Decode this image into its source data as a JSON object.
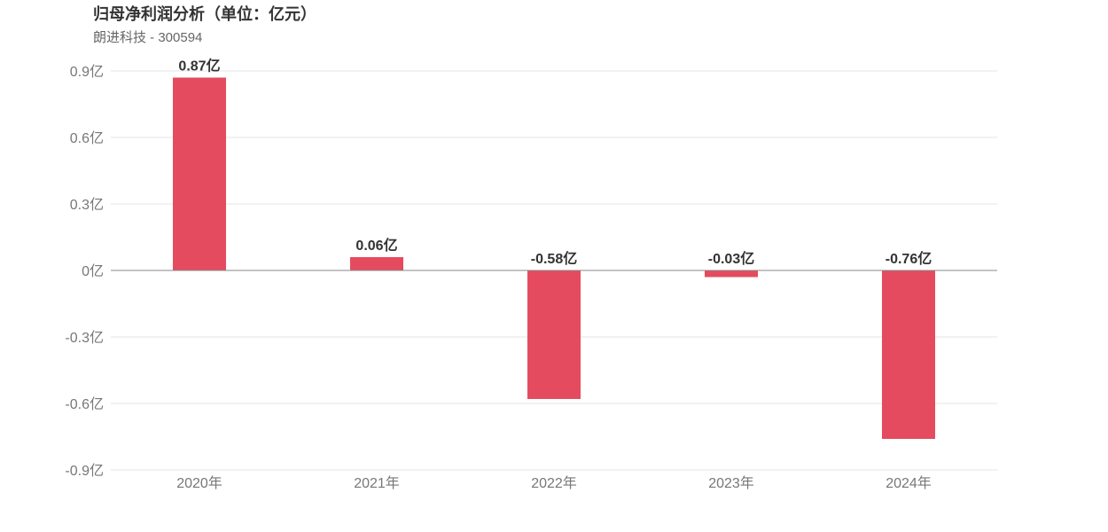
{
  "header": {
    "title": "归母净利润分析（单位：亿元）",
    "subtitle": "朗进科技 - 300594"
  },
  "colors": {
    "bar": "#e54b5e",
    "grid": "#e6e6e6",
    "zero_line": "#888888"
  },
  "chart_data": {
    "type": "bar",
    "title": "归母净利润分析（单位：亿元）",
    "subtitle": "朗进科技 - 300594",
    "categories": [
      "2020年",
      "2021年",
      "2022年",
      "2023年",
      "2024年"
    ],
    "values": [
      0.87,
      0.06,
      -0.58,
      -0.03,
      -0.76
    ],
    "data_labels": [
      "0.87亿",
      "0.06亿",
      "-0.58亿",
      "-0.03亿",
      "-0.76亿"
    ],
    "ylim": [
      -0.9,
      0.9
    ],
    "yticks": [
      0.9,
      0.6,
      0.3,
      0,
      -0.3,
      -0.6,
      -0.9
    ],
    "ytick_labels": [
      "0.9亿",
      "0.6亿",
      "0.3亿",
      "0亿",
      "-0.3亿",
      "-0.6亿",
      "-0.9亿"
    ],
    "xlabel": "",
    "ylabel": "",
    "grid": true,
    "legend": "none"
  }
}
